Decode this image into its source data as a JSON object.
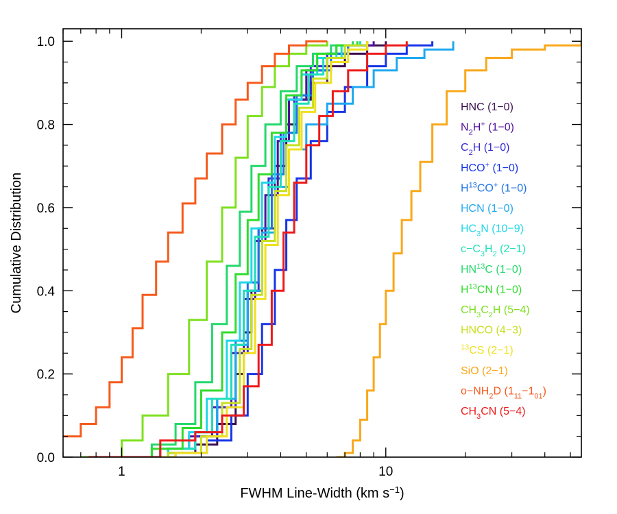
{
  "chart_data": {
    "type": "line",
    "subtype": "cumulative-step",
    "title": "",
    "xlabel": "FWHM Line-Width (km s",
    "xlabel_sup": "−1",
    "xlabel_close": ")",
    "ylabel": "Cumulative Distribution",
    "xscale": "log",
    "xlim": [
      0.6,
      55
    ],
    "ylim": [
      0,
      1.03
    ],
    "x_ticks": [
      {
        "value": 1,
        "label": "1"
      },
      {
        "value": 10,
        "label": "10"
      }
    ],
    "y_ticks": [
      {
        "value": 0.0,
        "label": "0.0"
      },
      {
        "value": 0.2,
        "label": "0.2"
      },
      {
        "value": 0.4,
        "label": "0.4"
      },
      {
        "value": 0.6,
        "label": "0.6"
      },
      {
        "value": 0.8,
        "label": "0.8"
      },
      {
        "value": 1.0,
        "label": "1.0"
      }
    ],
    "grid": false,
    "legend_position": "right",
    "series": [
      {
        "name": "HNC (1−0)",
        "label_parts": [
          [
            "HNC (1−0)",
            ""
          ]
        ],
        "color": "#3b0f4f",
        "x": [
          0.7,
          1.5,
          1.9,
          2.3,
          2.7,
          2.9,
          3.1,
          3.4,
          3.8,
          4.2,
          4.6,
          5.2,
          6.0,
          7.0,
          8.5,
          10.0
        ],
        "y": [
          0.0,
          0.01,
          0.03,
          0.08,
          0.2,
          0.3,
          0.4,
          0.55,
          0.7,
          0.8,
          0.86,
          0.9,
          0.94,
          0.97,
          0.99,
          1.0
        ]
      },
      {
        "name": "N2H+ (1−0)",
        "label_parts": [
          [
            "N",
            ""
          ],
          [
            "2",
            "sub"
          ],
          [
            "H",
            ""
          ],
          [
            "+",
            "sup"
          ],
          [
            " (1−0)",
            ""
          ]
        ],
        "color": "#50109a",
        "x": [
          0.75,
          1.4,
          1.8,
          2.2,
          2.6,
          2.9,
          3.2,
          3.5,
          3.9,
          4.3,
          5.0,
          6.0,
          7.2,
          9.0
        ],
        "y": [
          0.0,
          0.02,
          0.05,
          0.12,
          0.25,
          0.38,
          0.52,
          0.63,
          0.76,
          0.86,
          0.93,
          0.97,
          0.99,
          1.0
        ]
      },
      {
        "name": "C2H (1−0)",
        "label_parts": [
          [
            "C",
            ""
          ],
          [
            "2",
            "sub"
          ],
          [
            "H (1−0)",
            ""
          ]
        ],
        "color": "#3a2bd0",
        "x": [
          0.7,
          1.5,
          1.9,
          2.3,
          2.7,
          3.0,
          3.3,
          3.6,
          4.0,
          4.5,
          5.2,
          6.0,
          7.0,
          8.5
        ],
        "y": [
          0.0,
          0.02,
          0.05,
          0.12,
          0.25,
          0.4,
          0.55,
          0.67,
          0.78,
          0.87,
          0.94,
          0.97,
          0.99,
          1.0
        ]
      },
      {
        "name": "HCO+ (1−0)",
        "label_parts": [
          [
            "HCO",
            ""
          ],
          [
            "+",
            "sup"
          ],
          [
            " (1−0)",
            ""
          ]
        ],
        "color": "#1534e6",
        "x": [
          0.75,
          1.6,
          2.1,
          2.6,
          3.0,
          3.4,
          3.8,
          4.2,
          4.6,
          5.2,
          6.0,
          7.0,
          8.5,
          10.0,
          12.0,
          15.0
        ],
        "y": [
          0.0,
          0.01,
          0.04,
          0.1,
          0.2,
          0.32,
          0.45,
          0.57,
          0.67,
          0.76,
          0.83,
          0.89,
          0.94,
          0.97,
          0.99,
          1.0
        ]
      },
      {
        "name": "H13CO+ (1−0)",
        "label_parts": [
          [
            "H",
            ""
          ],
          [
            "13",
            "sup"
          ],
          [
            "CO",
            ""
          ],
          [
            "+",
            "sup"
          ],
          [
            " (1−0)",
            ""
          ]
        ],
        "color": "#1f73e6",
        "x": [
          0.75,
          1.5,
          1.9,
          2.3,
          2.7,
          3.0,
          3.3,
          3.7,
          4.1,
          4.6,
          5.3,
          6.2,
          7.2,
          8.5
        ],
        "y": [
          0.0,
          0.02,
          0.06,
          0.14,
          0.28,
          0.42,
          0.55,
          0.68,
          0.78,
          0.87,
          0.93,
          0.97,
          0.99,
          1.0
        ]
      },
      {
        "name": "HCN (1−0)",
        "label_parts": [
          [
            "HCN (1−0)",
            ""
          ]
        ],
        "color": "#1fa8f0",
        "x": [
          0.75,
          1.5,
          1.9,
          2.3,
          2.7,
          3.0,
          3.4,
          3.8,
          4.3,
          5.0,
          6.0,
          7.5,
          9.0,
          11.0,
          14.0,
          18.0
        ],
        "y": [
          0.0,
          0.02,
          0.06,
          0.14,
          0.27,
          0.4,
          0.54,
          0.65,
          0.74,
          0.8,
          0.85,
          0.89,
          0.93,
          0.96,
          0.98,
          1.0
        ]
      },
      {
        "name": "HC3N (10−9)",
        "label_parts": [
          [
            "HC",
            ""
          ],
          [
            "3",
            "sub"
          ],
          [
            "N (10−9)",
            ""
          ]
        ],
        "color": "#1fd8e8",
        "x": [
          0.8,
          1.4,
          1.8,
          2.1,
          2.5,
          2.8,
          3.1,
          3.4,
          3.8,
          4.2,
          4.8,
          5.5,
          6.5,
          8.0
        ],
        "y": [
          0.0,
          0.02,
          0.06,
          0.14,
          0.28,
          0.42,
          0.55,
          0.66,
          0.77,
          0.86,
          0.92,
          0.96,
          0.99,
          1.0
        ]
      },
      {
        "name": "c−C3H2 (2−1)",
        "label_parts": [
          [
            "c−C",
            ""
          ],
          [
            "3",
            "sub"
          ],
          [
            "H",
            ""
          ],
          [
            "2",
            "sub"
          ],
          [
            " (2−1)",
            ""
          ]
        ],
        "color": "#1fe0b8",
        "x": [
          0.8,
          1.5,
          1.9,
          2.2,
          2.6,
          2.9,
          3.2,
          3.6,
          4.0,
          4.5,
          5.1,
          5.8,
          6.8,
          8.0
        ],
        "y": [
          0.0,
          0.02,
          0.06,
          0.14,
          0.27,
          0.4,
          0.53,
          0.65,
          0.76,
          0.85,
          0.92,
          0.96,
          0.99,
          1.0
        ]
      },
      {
        "name": "HN13C (1−0)",
        "label_parts": [
          [
            "HN",
            ""
          ],
          [
            "13",
            "sup"
          ],
          [
            "C (1−0)",
            ""
          ]
        ],
        "color": "#22d86a",
        "x": [
          0.8,
          1.3,
          1.6,
          1.9,
          2.2,
          2.5,
          2.8,
          3.1,
          3.5,
          4.0,
          4.6,
          5.3,
          6.2,
          7.5
        ],
        "y": [
          0.0,
          0.03,
          0.08,
          0.18,
          0.32,
          0.46,
          0.59,
          0.7,
          0.8,
          0.88,
          0.94,
          0.97,
          0.99,
          1.0
        ]
      },
      {
        "name": "H13CN (1−0)",
        "label_parts": [
          [
            "H",
            ""
          ],
          [
            "13",
            "sup"
          ],
          [
            "CN (1−0)",
            ""
          ]
        ],
        "color": "#30dc2c",
        "x": [
          0.8,
          1.3,
          1.7,
          2.0,
          2.4,
          2.7,
          3.0,
          3.3,
          3.7,
          4.2,
          4.8,
          5.5,
          6.5,
          7.8
        ],
        "y": [
          0.0,
          0.02,
          0.07,
          0.16,
          0.3,
          0.44,
          0.57,
          0.68,
          0.78,
          0.87,
          0.93,
          0.97,
          0.99,
          1.0
        ]
      },
      {
        "name": "CH3C2H (5−4)",
        "label_parts": [
          [
            "CH",
            ""
          ],
          [
            "3",
            "sub"
          ],
          [
            "C",
            ""
          ],
          [
            "2",
            "sub"
          ],
          [
            "H (5−4)",
            ""
          ]
        ],
        "color": "#7ee01f",
        "x": [
          0.7,
          1.0,
          1.2,
          1.5,
          1.8,
          2.1,
          2.4,
          2.7,
          3.0,
          3.4,
          3.8,
          4.3,
          5.0,
          6.0
        ],
        "y": [
          0.0,
          0.04,
          0.1,
          0.2,
          0.33,
          0.47,
          0.6,
          0.72,
          0.82,
          0.89,
          0.94,
          0.97,
          0.99,
          1.0
        ]
      },
      {
        "name": "HNCO (4−3)",
        "label_parts": [
          [
            "HNCO (4−3)",
            ""
          ]
        ],
        "color": "#c8e020",
        "x": [
          0.8,
          1.5,
          2.0,
          2.4,
          2.8,
          3.1,
          3.4,
          3.8,
          4.2,
          4.7,
          5.3,
          6.0,
          7.0,
          8.5
        ],
        "y": [
          0.0,
          0.01,
          0.05,
          0.13,
          0.26,
          0.39,
          0.52,
          0.64,
          0.75,
          0.84,
          0.91,
          0.96,
          0.99,
          1.0
        ]
      },
      {
        "name": "13CS (2−1)",
        "label_parts": [
          [
            "13",
            "sup"
          ],
          [
            "CS (2−1)",
            ""
          ]
        ],
        "color": "#f0e020",
        "x": [
          0.8,
          1.6,
          2.1,
          2.5,
          2.9,
          3.2,
          3.5,
          3.9,
          4.3,
          4.8,
          5.4,
          6.2,
          7.2,
          8.5
        ],
        "y": [
          0.0,
          0.01,
          0.05,
          0.12,
          0.25,
          0.38,
          0.51,
          0.63,
          0.74,
          0.83,
          0.9,
          0.95,
          0.98,
          1.0
        ]
      },
      {
        "name": "SiO (2−1)",
        "label_parts": [
          [
            "SiO (2−1)",
            ""
          ]
        ],
        "color": "#f9a81a",
        "x": [
          6.5,
          7.0,
          7.5,
          8.0,
          8.5,
          9.0,
          9.5,
          10.0,
          10.7,
          11.5,
          12.5,
          13.5,
          15.0,
          17.0,
          20.0,
          24.0,
          30.0,
          40.0,
          55.0
        ],
        "y": [
          0.0,
          0.01,
          0.04,
          0.09,
          0.16,
          0.24,
          0.32,
          0.4,
          0.49,
          0.57,
          0.64,
          0.71,
          0.8,
          0.88,
          0.93,
          0.96,
          0.98,
          0.99,
          1.0
        ]
      },
      {
        "name": "o−NH2D (111−101)",
        "label_parts": [
          [
            "o−NH",
            ""
          ],
          [
            "2",
            "sub"
          ],
          [
            "D (1",
            ""
          ],
          [
            "11",
            "sub"
          ],
          [
            "−1",
            ""
          ],
          [
            "01",
            "sub"
          ],
          [
            ")",
            ""
          ]
        ],
        "color": "#f65a1c",
        "x": [
          0.6,
          0.7,
          0.8,
          0.9,
          1.0,
          1.1,
          1.2,
          1.35,
          1.5,
          1.7,
          1.9,
          2.1,
          2.4,
          2.7,
          3.0,
          3.4,
          3.8,
          4.3,
          5.0,
          6.0
        ],
        "y": [
          0.05,
          0.08,
          0.12,
          0.18,
          0.24,
          0.31,
          0.39,
          0.47,
          0.54,
          0.61,
          0.67,
          0.73,
          0.8,
          0.86,
          0.9,
          0.94,
          0.97,
          0.99,
          1.0,
          1.0
        ]
      },
      {
        "name": "CH3CN (5−4)",
        "label_parts": [
          [
            "CH",
            ""
          ],
          [
            "3",
            "sub"
          ],
          [
            "CN (5−4)",
            ""
          ]
        ],
        "color": "#ee1a1a",
        "x": [
          0.75,
          1.4,
          1.9,
          2.4,
          2.9,
          3.3,
          3.7,
          4.1,
          4.5,
          5.0,
          5.6,
          6.3,
          7.2,
          8.5,
          10.0,
          12.0
        ],
        "y": [
          0.0,
          0.04,
          0.06,
          0.1,
          0.17,
          0.27,
          0.4,
          0.54,
          0.66,
          0.75,
          0.82,
          0.88,
          0.93,
          0.97,
          0.99,
          1.0
        ]
      }
    ]
  }
}
